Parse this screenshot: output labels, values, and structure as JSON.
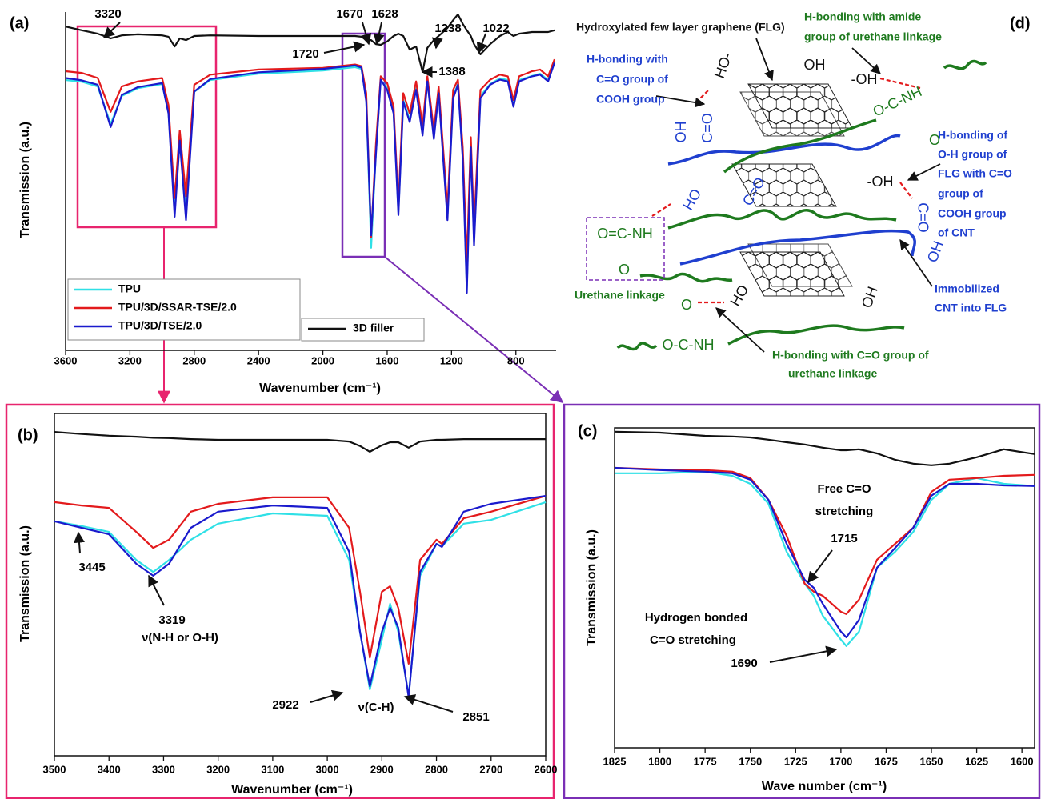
{
  "chart_data": [
    {
      "type": "line",
      "title": "(a)",
      "xlabel": "Wavenumber (cm⁻¹)",
      "ylabel": "Transmission (a.u.)",
      "x": [
        3600,
        3500,
        3400,
        3320,
        3250,
        3150,
        3000,
        2960,
        2922,
        2890,
        2851,
        2800,
        2700,
        2400,
        2000,
        1800,
        1760,
        1730,
        1700,
        1670,
        1640,
        1600,
        1560,
        1530,
        1500,
        1460,
        1420,
        1380,
        1350,
        1310,
        1280,
        1225,
        1190,
        1160,
        1130,
        1105,
        1080,
        1060,
        1020,
        960,
        900,
        850,
        815,
        780,
        700,
        650,
        600,
        560
      ],
      "xlim": [
        3600,
        550
      ],
      "xticks": [
        3600,
        3200,
        2800,
        2400,
        2000,
        1600,
        1200,
        800
      ],
      "ylim": [
        0,
        100
      ],
      "series": [
        {
          "name": "TPU",
          "color": "#2fe0e6",
          "values": [
            79.9,
            79.4,
            78.0,
            66.9,
            75.2,
            77.5,
            78.7,
            70.4,
            41.6,
            62.2,
            41.6,
            76.4,
            79.9,
            81.8,
            82.7,
            83.7,
            83.2,
            74.0,
            30.3,
            58.6,
            79.9,
            77.5,
            70.4,
            40.9,
            74.0,
            68.1,
            77.5,
            64.5,
            79.9,
            63.4,
            76.4,
            39.7,
            75.2,
            78.7,
            57.4,
            18.4,
            61.0,
            32.6,
            75.2,
            78.7,
            80.4,
            79.9,
            72.8,
            79.9,
            81.1,
            81.8,
            79.9,
            85.1
          ]
        },
        {
          "name": "TPU/3D/SSAR-TSE/2.0",
          "color": "#e31a1c",
          "values": [
            82.5,
            82.0,
            80.5,
            70.5,
            78.0,
            79.5,
            80.5,
            72.5,
            45.0,
            65.0,
            45.5,
            78.5,
            81.5,
            83.0,
            83.5,
            84.5,
            84.0,
            76.0,
            33.5,
            61.0,
            81.0,
            79.0,
            72.0,
            43.0,
            76.0,
            70.0,
            79.5,
            66.5,
            81.0,
            65.0,
            78.0,
            42.0,
            77.0,
            80.0,
            60.0,
            26.0,
            63.0,
            36.0,
            77.0,
            80.0,
            81.5,
            81.0,
            74.0,
            81.0,
            82.5,
            83.0,
            81.0,
            86.0
          ]
        },
        {
          "name": "TPU/3D/TSE/2.0",
          "color": "#1a1acd",
          "values": [
            80.5,
            79.8,
            78.5,
            66.0,
            75.5,
            77.8,
            79.0,
            70.0,
            39.5,
            62.0,
            38.5,
            76.5,
            80.2,
            82.2,
            83.2,
            84.2,
            83.6,
            73.5,
            34.0,
            58.0,
            80.0,
            77.0,
            70.0,
            40.0,
            73.5,
            67.5,
            77.0,
            63.5,
            79.5,
            62.5,
            76.0,
            38.5,
            74.5,
            78.5,
            56.5,
            17.0,
            60.0,
            31.0,
            74.5,
            78.5,
            80.0,
            79.5,
            72.0,
            79.5,
            81.0,
            81.5,
            79.5,
            85.0
          ]
        },
        {
          "name": "3D filler",
          "color": "#111111",
          "values": [
            95.7,
            94.6,
            93.6,
            92.2,
            93.1,
            93.4,
            93.1,
            92.7,
            89.8,
            92.2,
            91.7,
            92.9,
            93.1,
            92.9,
            92.9,
            92.9,
            92.7,
            91.7,
            91.7,
            90.5,
            90.3,
            91.3,
            92.9,
            93.6,
            92.9,
            88.9,
            89.8,
            82.3,
            89.4,
            91.7,
            92.9,
            95.3,
            97.6,
            99.3,
            96.5,
            94.6,
            92.9,
            90.5,
            87.5,
            90.5,
            92.9,
            94.1,
            92.9,
            93.6,
            94.1,
            94.1,
            94.1,
            94.6
          ]
        }
      ],
      "annotations": [
        "3320",
        "1670",
        "1628",
        "1720",
        "1238",
        "1022",
        "1388"
      ]
    },
    {
      "type": "line",
      "title": "(b)",
      "xlabel": "Wavenumber (cm⁻¹)",
      "ylabel": "Transmission (a.u.)",
      "x": [
        3500,
        3450,
        3400,
        3350,
        3319,
        3290,
        3250,
        3200,
        3100,
        3000,
        2960,
        2940,
        2922,
        2900,
        2885,
        2870,
        2851,
        2830,
        2800,
        2790,
        2750,
        2700,
        2600
      ],
      "xlim": [
        3500,
        2600
      ],
      "xticks": [
        3500,
        3400,
        3300,
        3200,
        3100,
        3000,
        2900,
        2800,
        2700,
        2600
      ],
      "ylim": [
        0,
        100
      ],
      "series": [
        {
          "color": "#111111",
          "values": [
            94.6,
            94.0,
            93.5,
            93.2,
            92.9,
            92.8,
            92.5,
            92.3,
            92.3,
            92.3,
            91.8,
            90.5,
            88.8,
            90.7,
            91.6,
            91.6,
            90.0,
            91.8,
            92.3,
            92.3,
            92.5,
            92.5,
            92.5
          ]
        },
        {
          "color": "#2fe0e6",
          "values": [
            68.5,
            67.1,
            65.4,
            57.2,
            53.7,
            57.2,
            63.1,
            67.8,
            70.8,
            70.1,
            57.2,
            36.2,
            19.4,
            33.9,
            44.4,
            36.2,
            17.5,
            52.6,
            61.9,
            61.2,
            67.8,
            68.9,
            74.1
          ]
        },
        {
          "color": "#e31a1c",
          "values": [
            74.1,
            73.1,
            72.4,
            65.4,
            60.7,
            63.1,
            71.3,
            73.6,
            75.5,
            75.5,
            66.6,
            47.9,
            28.7,
            47.9,
            49.5,
            43.2,
            26.9,
            57.2,
            63.1,
            61.9,
            69.4,
            71.3,
            75.9
          ]
        },
        {
          "color": "#1a1acd",
          "values": [
            68.5,
            66.6,
            64.7,
            56.1,
            52.6,
            56.1,
            66.6,
            71.3,
            73.1,
            72.4,
            59.6,
            36.2,
            20.3,
            36.2,
            43.2,
            37.4,
            17.1,
            53.7,
            61.9,
            61.0,
            71.3,
            73.6,
            75.9
          ]
        }
      ],
      "annotations": [
        "3445",
        "3319",
        "ν(N-H or O-H)",
        "2922",
        "ν(C-H)",
        "2851"
      ]
    },
    {
      "type": "line",
      "title": "(c)",
      "xlabel": "Wave number (cm⁻¹)",
      "ylabel": "Transmission (a.u.)",
      "x": [
        1825,
        1800,
        1775,
        1760,
        1750,
        1740,
        1730,
        1720,
        1715,
        1710,
        1700,
        1697,
        1690,
        1680,
        1670,
        1660,
        1650,
        1640,
        1625,
        1610,
        1593
      ],
      "xlim": [
        1825,
        1593
      ],
      "xticks": [
        1825,
        1800,
        1775,
        1750,
        1725,
        1700,
        1675,
        1650,
        1625,
        1600
      ],
      "ylim": [
        0,
        100
      ],
      "series": [
        {
          "color": "#111111",
          "values": [
            98.8,
            98.5,
            97.5,
            97.3,
            97.0,
            96.3,
            95.5,
            94.8,
            94.3,
            93.8,
            93.0,
            93.0,
            93.3,
            92.0,
            90.0,
            88.8,
            88.3,
            88.8,
            90.8,
            93.3,
            91.8
          ]
        },
        {
          "color": "#2fe0e6",
          "values": [
            85.8,
            85.8,
            86.3,
            85.0,
            82.5,
            76.3,
            61.3,
            51.3,
            47.5,
            41.3,
            33.8,
            31.8,
            36.3,
            56.3,
            61.3,
            67.5,
            77.5,
            82.5,
            84.3,
            82.5,
            81.8
          ]
        },
        {
          "color": "#e31a1c",
          "values": [
            87.5,
            87.0,
            86.8,
            86.3,
            84.3,
            77.5,
            66.3,
            51.3,
            48.8,
            47.5,
            42.5,
            41.8,
            46.3,
            58.8,
            63.8,
            68.8,
            80.0,
            83.8,
            84.3,
            85.0,
            85.3
          ]
        },
        {
          "color": "#1a1acd",
          "values": [
            87.5,
            86.8,
            86.3,
            85.8,
            83.8,
            77.5,
            63.8,
            52.5,
            50.0,
            45.0,
            36.3,
            34.5,
            40.0,
            56.3,
            62.5,
            68.8,
            78.8,
            82.5,
            82.5,
            82.0,
            81.8
          ]
        }
      ],
      "annotations": [
        "Free C=O",
        "stretching",
        "1715",
        "Hydrogen bonded",
        "C=O stretching",
        "1690"
      ]
    }
  ],
  "diagram": {
    "title": "(d)",
    "labels": [
      {
        "text": "Hydroxylated few layer graphene (FLG)",
        "color": "#111111"
      },
      {
        "text": "H-bonding with amide",
        "color": "#1e7a1e"
      },
      {
        "text": "group of urethane linkage",
        "color": "#1e7a1e"
      },
      {
        "text": "H-bonding with",
        "color": "#1f3fcf"
      },
      {
        "text": "C=O group of",
        "color": "#1f3fcf"
      },
      {
        "text": "COOH group",
        "color": "#1f3fcf"
      },
      {
        "text": "H-bonding of",
        "color": "#1f3fcf"
      },
      {
        "text": "O-H group of",
        "color": "#1f3fcf"
      },
      {
        "text": "FLG with C=O",
        "color": "#1f3fcf"
      },
      {
        "text": "group of",
        "color": "#1f3fcf"
      },
      {
        "text": "COOH group",
        "color": "#1f3fcf"
      },
      {
        "text": "of CNT",
        "color": "#1f3fcf"
      },
      {
        "text": "Urethane linkage",
        "color": "#1e7a1e"
      },
      {
        "text": "Immobilized",
        "color": "#1f3fcf"
      },
      {
        "text": "CNT into FLG",
        "color": "#1f3fcf"
      },
      {
        "text": "H-bonding with C=O group of",
        "color": "#1e7a1e"
      },
      {
        "text": "urethane linkage",
        "color": "#1e7a1e"
      },
      {
        "text": "HO-",
        "color": "#111111"
      },
      {
        "text": "OH",
        "color": "#111111"
      },
      {
        "text": "-OH",
        "color": "#111111"
      },
      {
        "text": "O-C-NH",
        "color": "#1e7a1e"
      },
      {
        "text": "O",
        "color": "#1e7a1e"
      },
      {
        "text": "C=O",
        "color": "#1f3fcf"
      },
      {
        "text": "OH",
        "color": "#1f3fcf"
      },
      {
        "text": "C=O",
        "color": "#1f3fcf"
      },
      {
        "text": "HO",
        "color": "#1f3fcf"
      },
      {
        "text": "-OH",
        "color": "#111111"
      },
      {
        "text": "O=C-NH",
        "color": "#1e7a1e"
      },
      {
        "text": "O",
        "color": "#1e7a1e"
      },
      {
        "text": "C=O",
        "color": "#1f3fcf"
      },
      {
        "text": "OH",
        "color": "#1f3fcf"
      },
      {
        "text": "HO",
        "color": "#111111"
      },
      {
        "text": "OH",
        "color": "#111111"
      },
      {
        "text": "O",
        "color": "#1e7a1e"
      },
      {
        "text": "O-C-NH",
        "color": "#1e7a1e"
      }
    ]
  }
}
